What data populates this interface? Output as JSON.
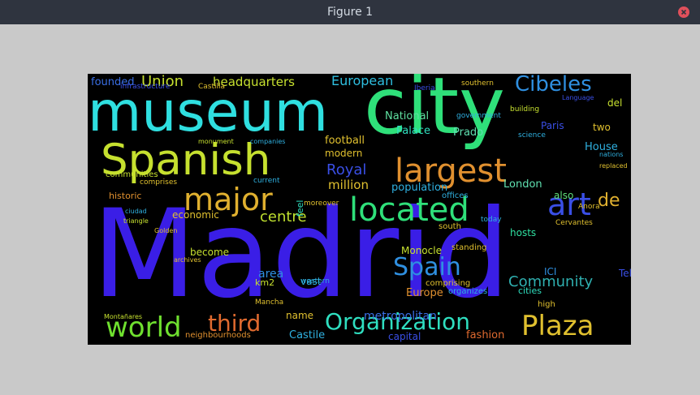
{
  "window": {
    "title": "Figure 1"
  },
  "colors": {
    "titlebar": "#2f343f",
    "background": "#c9c9c9",
    "close": "#e0505b",
    "figure_bg": "#000000"
  },
  "icons": {
    "close": "close-icon"
  },
  "wordcloud": {
    "words": [
      {
        "text": "Madrid",
        "color": "#3a1ee6"
      },
      {
        "text": "city",
        "color": "#2fe07a"
      },
      {
        "text": "museum",
        "color": "#2fdfe0"
      },
      {
        "text": "Spanish",
        "color": "#c6e02f"
      },
      {
        "text": "largest",
        "color": "#e0902f"
      },
      {
        "text": "located",
        "color": "#2fe07a"
      },
      {
        "text": "major",
        "color": "#e0b02f"
      },
      {
        "text": "Organization",
        "color": "#2fdfc0"
      },
      {
        "text": "world",
        "color": "#6fe02f"
      },
      {
        "text": "Plaza",
        "color": "#e0c02f"
      },
      {
        "text": "Cibeles",
        "color": "#2f8fe0"
      },
      {
        "text": "Spain",
        "color": "#2f8fe0"
      },
      {
        "text": "art",
        "color": "#3a4fe6"
      },
      {
        "text": "third",
        "color": "#e06a2f"
      },
      {
        "text": "Union",
        "color": "#c6e02f"
      },
      {
        "text": "headquarters",
        "color": "#c6e02f"
      },
      {
        "text": "European",
        "color": "#2fbfe0"
      },
      {
        "text": "centre",
        "color": "#bfe02f"
      },
      {
        "text": "Community",
        "color": "#2fb0b0"
      },
      {
        "text": "Royal",
        "color": "#3a4fe6"
      },
      {
        "text": "million",
        "color": "#e0c02f"
      },
      {
        "text": "de",
        "color": "#e0b02f"
      },
      {
        "text": "National",
        "color": "#5fe0a0"
      },
      {
        "text": "Palace",
        "color": "#2fe0c0"
      },
      {
        "text": "Prado",
        "color": "#5fe0b0"
      },
      {
        "text": "football",
        "color": "#e0c02f"
      },
      {
        "text": "modern",
        "color": "#e0c02f"
      },
      {
        "text": "population",
        "color": "#2fb0e0"
      },
      {
        "text": "London",
        "color": "#5fe0b0"
      },
      {
        "text": "Paris",
        "color": "#3a4fe6"
      },
      {
        "text": "House",
        "color": "#2fb0e0"
      },
      {
        "text": "two",
        "color": "#e0c02f"
      },
      {
        "text": "del",
        "color": "#c6e02f"
      },
      {
        "text": "also",
        "color": "#5fe07a"
      },
      {
        "text": "hosts",
        "color": "#2fe0a0"
      },
      {
        "text": "founded",
        "color": "#3a6fe6"
      },
      {
        "text": "communities",
        "color": "#c6e02f"
      },
      {
        "text": "historic",
        "color": "#e0902f"
      },
      {
        "text": "economic",
        "color": "#e0c02f"
      },
      {
        "text": "become",
        "color": "#c6e02f"
      },
      {
        "text": "area",
        "color": "#2f8fe0"
      },
      {
        "text": "vast",
        "color": "#2fb0e0"
      },
      {
        "text": "metropolitan",
        "color": "#3a6fe6"
      },
      {
        "text": "Monocle",
        "color": "#c6e02f"
      },
      {
        "text": "Europe",
        "color": "#e0902f"
      },
      {
        "text": "capital",
        "color": "#3a4fe6"
      },
      {
        "text": "fashion",
        "color": "#e06a2f"
      },
      {
        "text": "Castile",
        "color": "#2fb0e0"
      },
      {
        "text": "name",
        "color": "#e0c02f"
      },
      {
        "text": "km2",
        "color": "#c6e02f"
      },
      {
        "text": "cities",
        "color": "#2fe0c0"
      },
      {
        "text": "ICI",
        "color": "#2f8fe0"
      },
      {
        "text": "Telefónica",
        "color": "#3a4fe6"
      },
      {
        "text": "offices",
        "color": "#2fb0e0"
      },
      {
        "text": "today",
        "color": "#2fb0e0"
      },
      {
        "text": "south",
        "color": "#e0c02f"
      },
      {
        "text": "standing",
        "color": "#e0c02f"
      },
      {
        "text": "comprising",
        "color": "#e0c02f"
      },
      {
        "text": "organizes",
        "color": "#2fb0e0"
      },
      {
        "text": "high",
        "color": "#e0c02f"
      },
      {
        "text": "Cervantes",
        "color": "#e0c02f"
      },
      {
        "text": "Anora",
        "color": "#e0c02f"
      },
      {
        "text": "science",
        "color": "#2fb0e0"
      },
      {
        "text": "building",
        "color": "#c6e02f"
      },
      {
        "text": "Iberia",
        "color": "#3a4fe6"
      },
      {
        "text": "southern",
        "color": "#e0c02f"
      },
      {
        "text": "government",
        "color": "#2fb0e0"
      },
      {
        "text": "monument",
        "color": "#c6e02f"
      },
      {
        "text": "companies",
        "color": "#2fb0e0"
      },
      {
        "text": "current",
        "color": "#2fb0e0"
      },
      {
        "text": "comprises",
        "color": "#e0c02f"
      },
      {
        "text": "feel",
        "color": "#2fe0c0"
      },
      {
        "text": "moreover",
        "color": "#e0c02f"
      },
      {
        "text": "western",
        "color": "#2fb0e0"
      },
      {
        "text": "Mancha",
        "color": "#e0c02f"
      },
      {
        "text": "neighbourhoods",
        "color": "#e0902f"
      },
      {
        "text": "Castilla",
        "color": "#e0c02f"
      },
      {
        "text": "infrastructure",
        "color": "#3a4fe6"
      },
      {
        "text": "nations",
        "color": "#2fb0e0"
      },
      {
        "text": "replaced",
        "color": "#e0c02f"
      },
      {
        "text": "Language",
        "color": "#3a4fe6"
      },
      {
        "text": "archives",
        "color": "#e0c02f"
      },
      {
        "text": "Montañares",
        "color": "#c6e02f"
      },
      {
        "text": "triangle",
        "color": "#c6e02f"
      },
      {
        "text": "ciudad",
        "color": "#2fb0e0"
      },
      {
        "text": "Golden",
        "color": "#e0c02f"
      }
    ]
  }
}
